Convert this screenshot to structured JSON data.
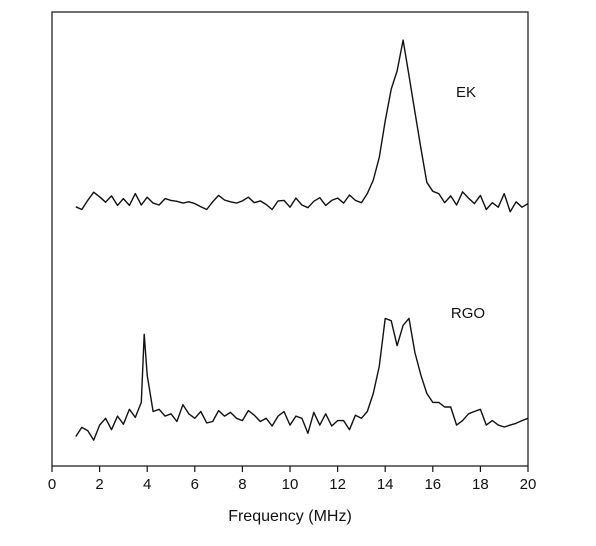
{
  "chart_data": {
    "type": "line",
    "xlabel": "Frequency (MHz)",
    "ylabel": "",
    "xlim": [
      0,
      20
    ],
    "ylim": [
      0,
      1
    ],
    "xticks": [
      "0",
      "2",
      "4",
      "6",
      "8",
      "10",
      "12",
      "14",
      "16",
      "18",
      "20"
    ],
    "grid": false,
    "series": [
      {
        "name": "EK",
        "x": [
          1.0,
          1.25,
          1.5,
          1.75,
          2.0,
          2.25,
          2.5,
          2.75,
          3.0,
          3.25,
          3.5,
          3.75,
          4.0,
          4.25,
          4.5,
          4.75,
          5.0,
          5.25,
          5.5,
          5.75,
          6.0,
          6.25,
          6.5,
          6.75,
          7.0,
          7.25,
          7.5,
          7.75,
          8.0,
          8.25,
          8.5,
          8.75,
          9.0,
          9.25,
          9.5,
          9.75,
          10.0,
          10.25,
          10.5,
          10.75,
          11.0,
          11.25,
          11.5,
          11.75,
          12.0,
          12.25,
          12.5,
          12.75,
          13.0,
          13.25,
          13.5,
          13.75,
          14.0,
          14.25,
          14.5,
          14.75,
          15.0,
          15.25,
          15.5,
          15.75,
          16.0,
          16.25,
          16.5,
          16.75,
          17.0,
          17.25,
          17.5,
          17.75,
          18.0,
          18.25,
          18.5,
          18.75,
          19.0,
          19.25,
          19.5,
          19.75,
          20.0
        ],
        "y": [
          0.571,
          0.565,
          0.585,
          0.603,
          0.593,
          0.581,
          0.595,
          0.574,
          0.589,
          0.574,
          0.6,
          0.575,
          0.592,
          0.579,
          0.575,
          0.589,
          0.585,
          0.583,
          0.579,
          0.582,
          0.578,
          0.571,
          0.565,
          0.582,
          0.596,
          0.586,
          0.582,
          0.579,
          0.584,
          0.592,
          0.58,
          0.584,
          0.576,
          0.565,
          0.584,
          0.585,
          0.57,
          0.59,
          0.575,
          0.569,
          0.583,
          0.591,
          0.574,
          0.585,
          0.59,
          0.579,
          0.597,
          0.585,
          0.58,
          0.6,
          0.63,
          0.68,
          0.76,
          0.83,
          0.87,
          0.938,
          0.86,
          0.78,
          0.7,
          0.625,
          0.605,
          0.6,
          0.58,
          0.595,
          0.575,
          0.604,
          0.59,
          0.578,
          0.596,
          0.565,
          0.58,
          0.57,
          0.6,
          0.56,
          0.582,
          0.57,
          0.578
        ]
      },
      {
        "name": "RGO",
        "x": [
          1.0,
          1.25,
          1.5,
          1.75,
          2.0,
          2.25,
          2.5,
          2.75,
          3.0,
          3.25,
          3.5,
          3.75,
          3.875,
          4.0,
          4.25,
          4.5,
          4.75,
          5.0,
          5.25,
          5.5,
          5.75,
          6.0,
          6.25,
          6.5,
          6.75,
          7.0,
          7.25,
          7.5,
          7.75,
          8.0,
          8.25,
          8.5,
          8.75,
          9.0,
          9.25,
          9.5,
          9.75,
          10.0,
          10.25,
          10.5,
          10.75,
          11.0,
          11.25,
          11.5,
          11.75,
          12.0,
          12.25,
          12.5,
          12.75,
          13.0,
          13.25,
          13.5,
          13.75,
          14.0,
          14.25,
          14.5,
          14.75,
          15.0,
          15.25,
          15.5,
          15.75,
          16.0,
          16.25,
          16.5,
          16.75,
          17.0,
          17.25,
          17.5,
          17.75,
          18.0,
          18.25,
          18.5,
          18.75,
          19.0,
          19.25,
          19.5,
          19.75,
          20.0
        ],
        "y": [
          0.065,
          0.085,
          0.078,
          0.057,
          0.09,
          0.105,
          0.08,
          0.11,
          0.092,
          0.125,
          0.107,
          0.14,
          0.29,
          0.2,
          0.12,
          0.125,
          0.11,
          0.115,
          0.098,
          0.135,
          0.115,
          0.105,
          0.12,
          0.095,
          0.098,
          0.122,
          0.11,
          0.118,
          0.105,
          0.1,
          0.122,
          0.112,
          0.098,
          0.105,
          0.088,
          0.11,
          0.12,
          0.09,
          0.11,
          0.105,
          0.072,
          0.118,
          0.09,
          0.115,
          0.088,
          0.1,
          0.1,
          0.08,
          0.112,
          0.105,
          0.12,
          0.16,
          0.22,
          0.325,
          0.32,
          0.265,
          0.31,
          0.325,
          0.25,
          0.2,
          0.16,
          0.14,
          0.14,
          0.13,
          0.13,
          0.09,
          0.1,
          0.115,
          0.12,
          0.125,
          0.09,
          0.1,
          0.09,
          0.086,
          0.09,
          0.094,
          0.1,
          0.105
        ]
      }
    ]
  }
}
